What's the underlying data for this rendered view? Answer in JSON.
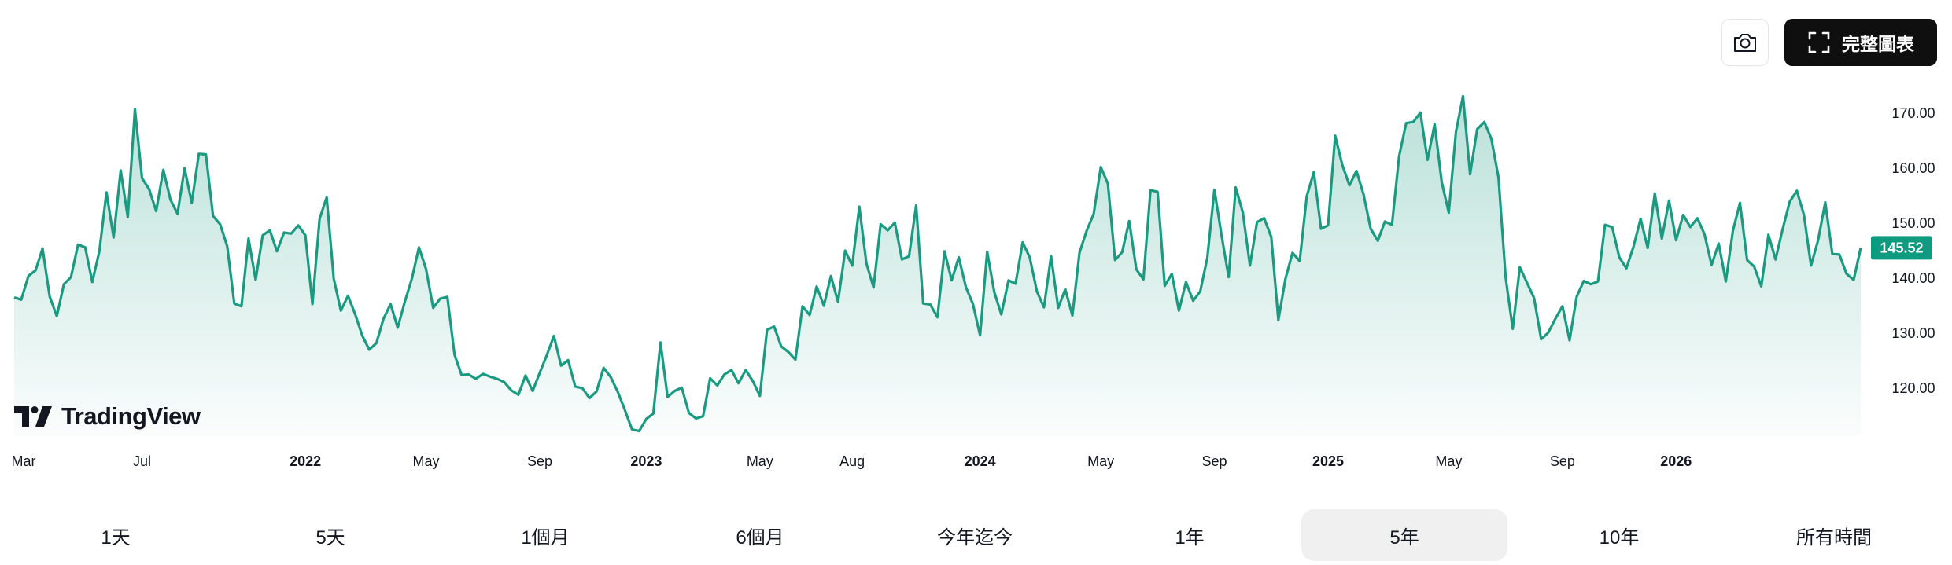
{
  "toolbar": {
    "snapshot_icon": "camera-icon",
    "fullchart_icon": "fullscreen-corners-icon",
    "fullchart_label": "完整圖表"
  },
  "logo": {
    "icon": "tradingview-logo-icon",
    "text": "TradingView"
  },
  "ranges": [
    {
      "label": "1天",
      "active": false
    },
    {
      "label": "5天",
      "active": false
    },
    {
      "label": "1個月",
      "active": false
    },
    {
      "label": "6個月",
      "active": false
    },
    {
      "label": "今年迄今",
      "active": false
    },
    {
      "label": "1年",
      "active": false
    },
    {
      "label": "5年",
      "active": true
    },
    {
      "label": "10年",
      "active": false
    },
    {
      "label": "所有時間",
      "active": false
    }
  ],
  "colors": {
    "line": "#1a9a80",
    "price_badge": "#0e9b80",
    "text": "#131722",
    "axis_text": "#131722"
  },
  "chart_data": {
    "type": "area",
    "x_tick_labels": [
      "Mar",
      "Jul",
      "2022",
      "May",
      "Sep",
      "2023",
      "May",
      "Aug",
      "2024",
      "May",
      "Sep",
      "2025",
      "May",
      "Sep",
      "2026"
    ],
    "x_tick_index": [
      0,
      18,
      41,
      58,
      74,
      89,
      105,
      118,
      136,
      153,
      169,
      185,
      202,
      218,
      234
    ],
    "y_ticks": [
      120.0,
      130.0,
      140.0,
      150.0,
      160.0,
      170.0
    ],
    "y_tick_labels": [
      "120.00",
      "130.00",
      "140.00",
      "150.00",
      "160.00",
      "170.00"
    ],
    "ylim": [
      112,
      175
    ],
    "last_price": 145.52,
    "last_price_label": "145.52",
    "values": [
      136.5,
      136.1,
      140.4,
      141.4,
      145.4,
      136.7,
      133.1,
      138.9,
      140.2,
      146.1,
      145.6,
      139.3,
      144.9,
      155.6,
      147.4,
      159.6,
      151.1,
      170.7,
      158.2,
      156.2,
      152.2,
      159.7,
      154.3,
      151.7,
      160.0,
      153.7,
      162.6,
      162.5,
      151.3,
      149.8,
      145.8,
      135.4,
      134.9,
      147.2,
      139.7,
      147.8,
      148.7,
      144.9,
      148.3,
      148.1,
      149.6,
      147.8,
      135.3,
      150.8,
      154.7,
      139.9,
      134.1,
      136.8,
      133.5,
      129.6,
      127.0,
      128.2,
      132.6,
      135.3,
      131.0,
      135.7,
      139.9,
      145.6,
      141.6,
      134.6,
      136.3,
      136.6,
      126.1,
      122.4,
      122.5,
      121.7,
      122.6,
      122.1,
      121.7,
      121.1,
      119.6,
      118.8,
      122.3,
      119.5,
      122.8,
      126.0,
      129.5,
      124.1,
      125.1,
      120.3,
      120.0,
      118.2,
      119.4,
      123.7,
      122.0,
      119.3,
      116.0,
      112.5,
      112.2,
      114.4,
      115.4,
      128.3,
      118.4,
      119.5,
      120.1,
      115.5,
      114.5,
      114.9,
      121.8,
      120.5,
      122.5,
      123.3,
      120.9,
      123.3,
      121.3,
      118.6,
      130.6,
      131.2,
      127.6,
      126.6,
      125.2,
      134.9,
      133.3,
      138.5,
      135.0,
      140.4,
      135.7,
      145.0,
      142.3,
      153.0,
      142.7,
      138.3,
      149.8,
      148.7,
      150.1,
      143.4,
      144.0,
      153.2,
      135.4,
      135.2,
      132.9,
      144.9,
      139.6,
      143.8,
      138.4,
      135.3,
      129.6,
      144.8,
      137.5,
      133.4,
      139.6,
      139.0,
      146.5,
      143.8,
      137.6,
      134.7,
      144.0,
      134.6,
      138.0,
      133.2,
      144.6,
      148.6,
      151.7,
      160.2,
      157.2,
      143.3,
      144.7,
      150.4,
      141.6,
      139.8,
      156.0,
      155.7,
      138.6,
      140.8,
      134.1,
      139.3,
      135.9,
      137.6,
      143.7,
      156.1,
      147.8,
      140.2,
      156.5,
      151.9,
      142.3,
      150.2,
      150.9,
      147.5,
      132.4,
      139.9,
      144.6,
      143.1,
      154.9,
      159.3,
      149.0,
      149.6,
      165.9,
      160.6,
      156.9,
      159.5,
      155.2,
      149.0,
      146.8,
      150.3,
      149.7,
      162.2,
      168.2,
      168.4,
      170.1,
      161.5,
      168.0,
      157.5,
      151.9,
      166.6,
      173.1,
      158.9,
      167.1,
      168.4,
      165.3,
      158.3,
      140.1,
      130.8,
      142.0,
      139.2,
      136.4,
      128.9,
      130.1,
      132.6,
      134.9,
      128.7,
      136.6,
      139.5,
      138.9,
      139.4,
      149.7,
      149.3,
      143.8,
      141.8,
      145.7,
      150.8,
      145.5,
      155.4,
      147.2,
      154.1,
      146.9,
      151.5,
      149.3,
      150.9,
      148.0,
      142.4,
      146.3,
      139.4,
      148.6,
      153.7,
      143.3,
      142.1,
      138.5,
      147.9,
      143.4,
      148.9,
      153.9,
      155.9,
      151.5,
      142.3,
      146.9,
      153.8,
      144.4,
      144.3,
      140.8,
      139.7,
      145.52
    ]
  }
}
